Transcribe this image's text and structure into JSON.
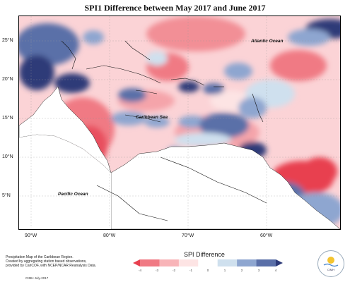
{
  "title": "SPI1 Difference between May 2017 and June 2017",
  "map": {
    "region": "Caribbean",
    "lat_labels": [
      "25°N",
      "20°N",
      "15°N",
      "10°N",
      "5°N"
    ],
    "lon_labels": [
      "90°W",
      "80°W",
      "70°W",
      "60°W"
    ],
    "place_labels": {
      "atlantic": "Atlantic Ocean",
      "caribbean": "Caribbean Sea",
      "pacific": "Pacific Ocean"
    }
  },
  "legend": {
    "title": "SPI Difference",
    "ticks": [
      "-4",
      "-3",
      "-2",
      "-1",
      "0",
      "1",
      "2",
      "3",
      "4"
    ],
    "colors": [
      "#e8404f",
      "#f07a84",
      "#f8b4b8",
      "#fde4e4",
      "#ffffff",
      "#cfe0ee",
      "#8ea6d0",
      "#5a6fa8",
      "#2d3a78"
    ]
  },
  "credit": {
    "lines": [
      "Precipitation Map of the Caribbean Region.",
      "Created by aggregating station based observations,",
      "provided by CariCOF, with NCEP/NCAR Reanalysis Data."
    ],
    "date": "CIMH July-2017"
  },
  "logo": {
    "text": "CIMH"
  }
}
